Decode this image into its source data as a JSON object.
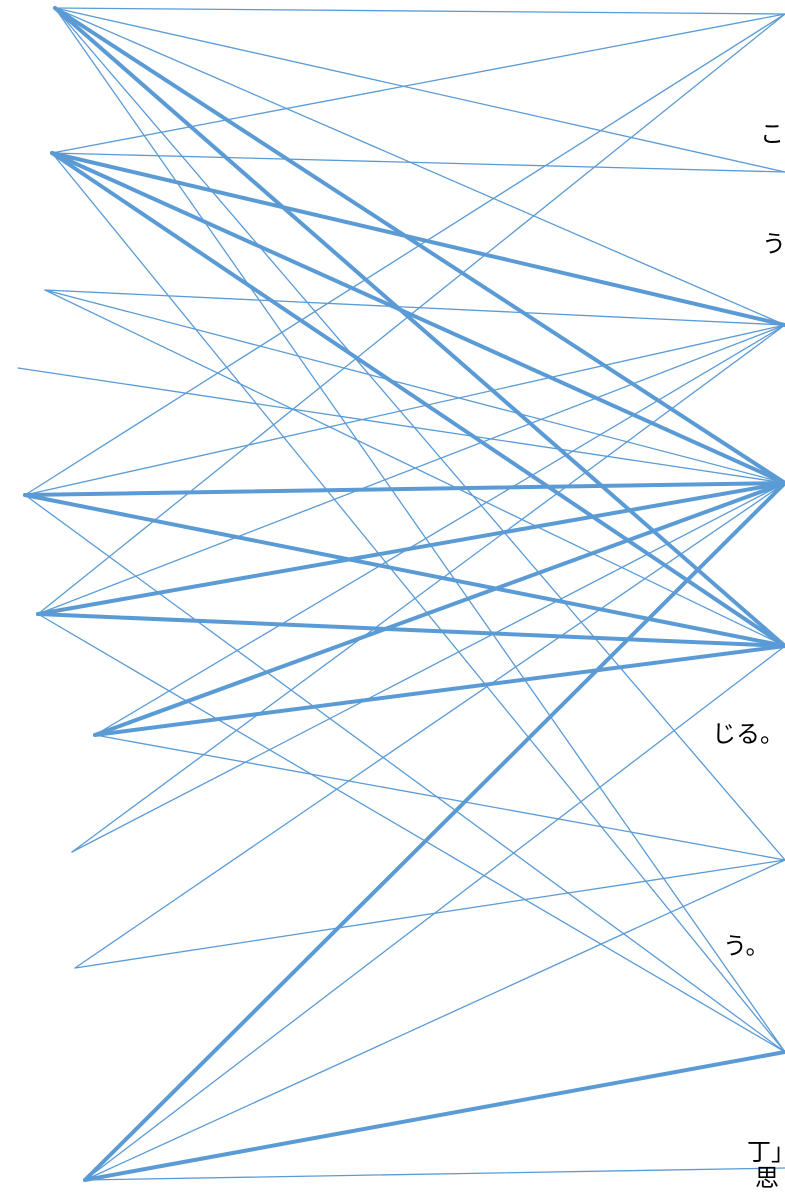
{
  "line_color": "#5b9bd5",
  "text_fragments": [
    {
      "id": "frag-1",
      "text": "こ"
    },
    {
      "id": "frag-2",
      "text": "う"
    },
    {
      "id": "frag-3",
      "text": "じる。"
    },
    {
      "id": "frag-4",
      "text": "う。"
    },
    {
      "id": "frag-5",
      "text": "丁」"
    },
    {
      "id": "frag-6",
      "text": "思"
    }
  ],
  "connections": [
    {
      "from": 1,
      "to": 1,
      "weight": "thin"
    },
    {
      "from": 1,
      "to": 2,
      "weight": "thin"
    },
    {
      "from": 1,
      "to": 3,
      "weight": "thin"
    },
    {
      "from": 1,
      "to": 4,
      "weight": "thick"
    },
    {
      "from": 1,
      "to": 5,
      "weight": "thick"
    },
    {
      "from": 1,
      "to": 6,
      "weight": "thin"
    },
    {
      "from": 1,
      "to": 7,
      "weight": "thin"
    },
    {
      "from": 2,
      "to": 1,
      "weight": "thin"
    },
    {
      "from": 2,
      "to": 2,
      "weight": "thin"
    },
    {
      "from": 2,
      "to": 3,
      "weight": "thick"
    },
    {
      "from": 2,
      "to": 4,
      "weight": "thick"
    },
    {
      "from": 2,
      "to": 5,
      "weight": "thick"
    },
    {
      "from": 2,
      "to": 7,
      "weight": "thin"
    },
    {
      "from": 3,
      "to": 3,
      "weight": "thin"
    },
    {
      "from": 3,
      "to": 4,
      "weight": "thin"
    },
    {
      "from": 3,
      "to": 5,
      "weight": "thin"
    },
    {
      "from": 4,
      "to": 4,
      "weight": "thin"
    },
    {
      "from": 5,
      "to": 1,
      "weight": "thin"
    },
    {
      "from": 5,
      "to": 3,
      "weight": "thin"
    },
    {
      "from": 5,
      "to": 4,
      "weight": "thick"
    },
    {
      "from": 5,
      "to": 5,
      "weight": "thick"
    },
    {
      "from": 5,
      "to": 7,
      "weight": "thin"
    },
    {
      "from": 6,
      "to": 1,
      "weight": "thin"
    },
    {
      "from": 6,
      "to": 3,
      "weight": "thin"
    },
    {
      "from": 6,
      "to": 4,
      "weight": "thick"
    },
    {
      "from": 6,
      "to": 5,
      "weight": "thick"
    },
    {
      "from": 6,
      "to": 7,
      "weight": "thin"
    },
    {
      "from": 7,
      "to": 3,
      "weight": "thin"
    },
    {
      "from": 7,
      "to": 4,
      "weight": "thick"
    },
    {
      "from": 7,
      "to": 5,
      "weight": "thick"
    },
    {
      "from": 7,
      "to": 6,
      "weight": "thin"
    },
    {
      "from": 8,
      "to": 3,
      "weight": "thin"
    },
    {
      "from": 8,
      "to": 4,
      "weight": "thin"
    },
    {
      "from": 9,
      "to": 4,
      "weight": "thin"
    },
    {
      "from": 9,
      "to": 6,
      "weight": "thin"
    },
    {
      "from": 10,
      "to": 4,
      "weight": "thick"
    },
    {
      "from": 10,
      "to": 5,
      "weight": "thin"
    },
    {
      "from": 10,
      "to": 6,
      "weight": "thin"
    },
    {
      "from": 10,
      "to": 7,
      "weight": "thick"
    },
    {
      "from": 10,
      "to": 8,
      "weight": "thin"
    }
  ]
}
